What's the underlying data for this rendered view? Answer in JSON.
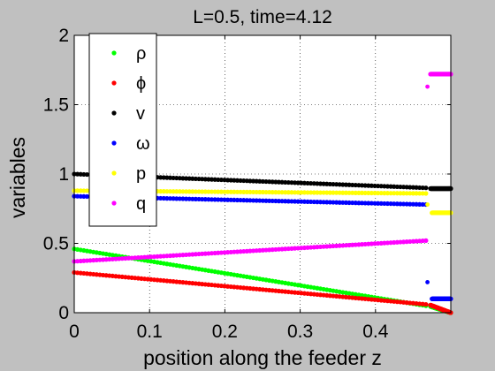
{
  "chart_data": {
    "type": "scatter",
    "title": "L=0.5, time=4.12",
    "xlabel": "position along the feeder z",
    "ylabel": "variables",
    "xlim": [
      0,
      0.5
    ],
    "ylim": [
      0,
      2
    ],
    "xticks": [
      0,
      0.1,
      0.2,
      0.3,
      0.4
    ],
    "xtick_labels": [
      "0",
      "0.1",
      "0.2",
      "0.3",
      "0.4"
    ],
    "yticks": [
      0,
      0.5,
      1,
      1.5,
      2
    ],
    "ytick_labels": [
      "0",
      "0.5",
      "1",
      "1.5",
      "2"
    ],
    "grid": true,
    "legend_position": "top-left",
    "background_color": "#c0c0c0",
    "plot_background_color": "#ffffff",
    "series": [
      {
        "name": "ρ",
        "color": "#00ff00",
        "segments": [
          {
            "x_start": 0,
            "x_end": 0.467,
            "y_start": 0.46,
            "y_end": 0.05
          },
          {
            "x_start": 0.473,
            "x_end": 0.5,
            "y_start": 0.045,
            "y_end": 0.0
          }
        ]
      },
      {
        "name": "ϕ",
        "color": "#ff0000",
        "segments": [
          {
            "x_start": 0,
            "x_end": 0.467,
            "y_start": 0.29,
            "y_end": 0.06
          },
          {
            "x_start": 0.473,
            "x_end": 0.5,
            "y_start": 0.055,
            "y_end": 0.0
          }
        ]
      },
      {
        "name": "v",
        "color": "#000000",
        "segments": [
          {
            "x_start": 0,
            "x_end": 0.467,
            "y_start": 1.0,
            "y_end": 0.9
          },
          {
            "x_start": 0.473,
            "x_end": 0.5,
            "y_start": 0.895,
            "y_end": 0.895
          }
        ]
      },
      {
        "name": "ω",
        "color": "#0000ff",
        "segments": [
          {
            "x_start": 0,
            "x_end": 0.467,
            "y_start": 0.84,
            "y_end": 0.78
          },
          {
            "x_start": 0.475,
            "x_end": 0.5,
            "y_start": 0.1,
            "y_end": 0.1
          }
        ],
        "isolated_points": [
          [
            0.469,
            0.22
          ]
        ]
      },
      {
        "name": "p",
        "color": "#ffff00",
        "segments": [
          {
            "x_start": 0,
            "x_end": 0.467,
            "y_start": 0.88,
            "y_end": 0.86
          },
          {
            "x_start": 0.475,
            "x_end": 0.5,
            "y_start": 0.72,
            "y_end": 0.72
          }
        ],
        "isolated_points": [
          [
            0.469,
            0.78
          ]
        ]
      },
      {
        "name": "q",
        "color": "#ff00ff",
        "segments": [
          {
            "x_start": 0,
            "x_end": 0.467,
            "y_start": 0.37,
            "y_end": 0.52
          },
          {
            "x_start": 0.473,
            "x_end": 0.5,
            "y_start": 1.72,
            "y_end": 1.72
          }
        ],
        "isolated_points": [
          [
            0.469,
            1.63
          ]
        ]
      }
    ]
  }
}
